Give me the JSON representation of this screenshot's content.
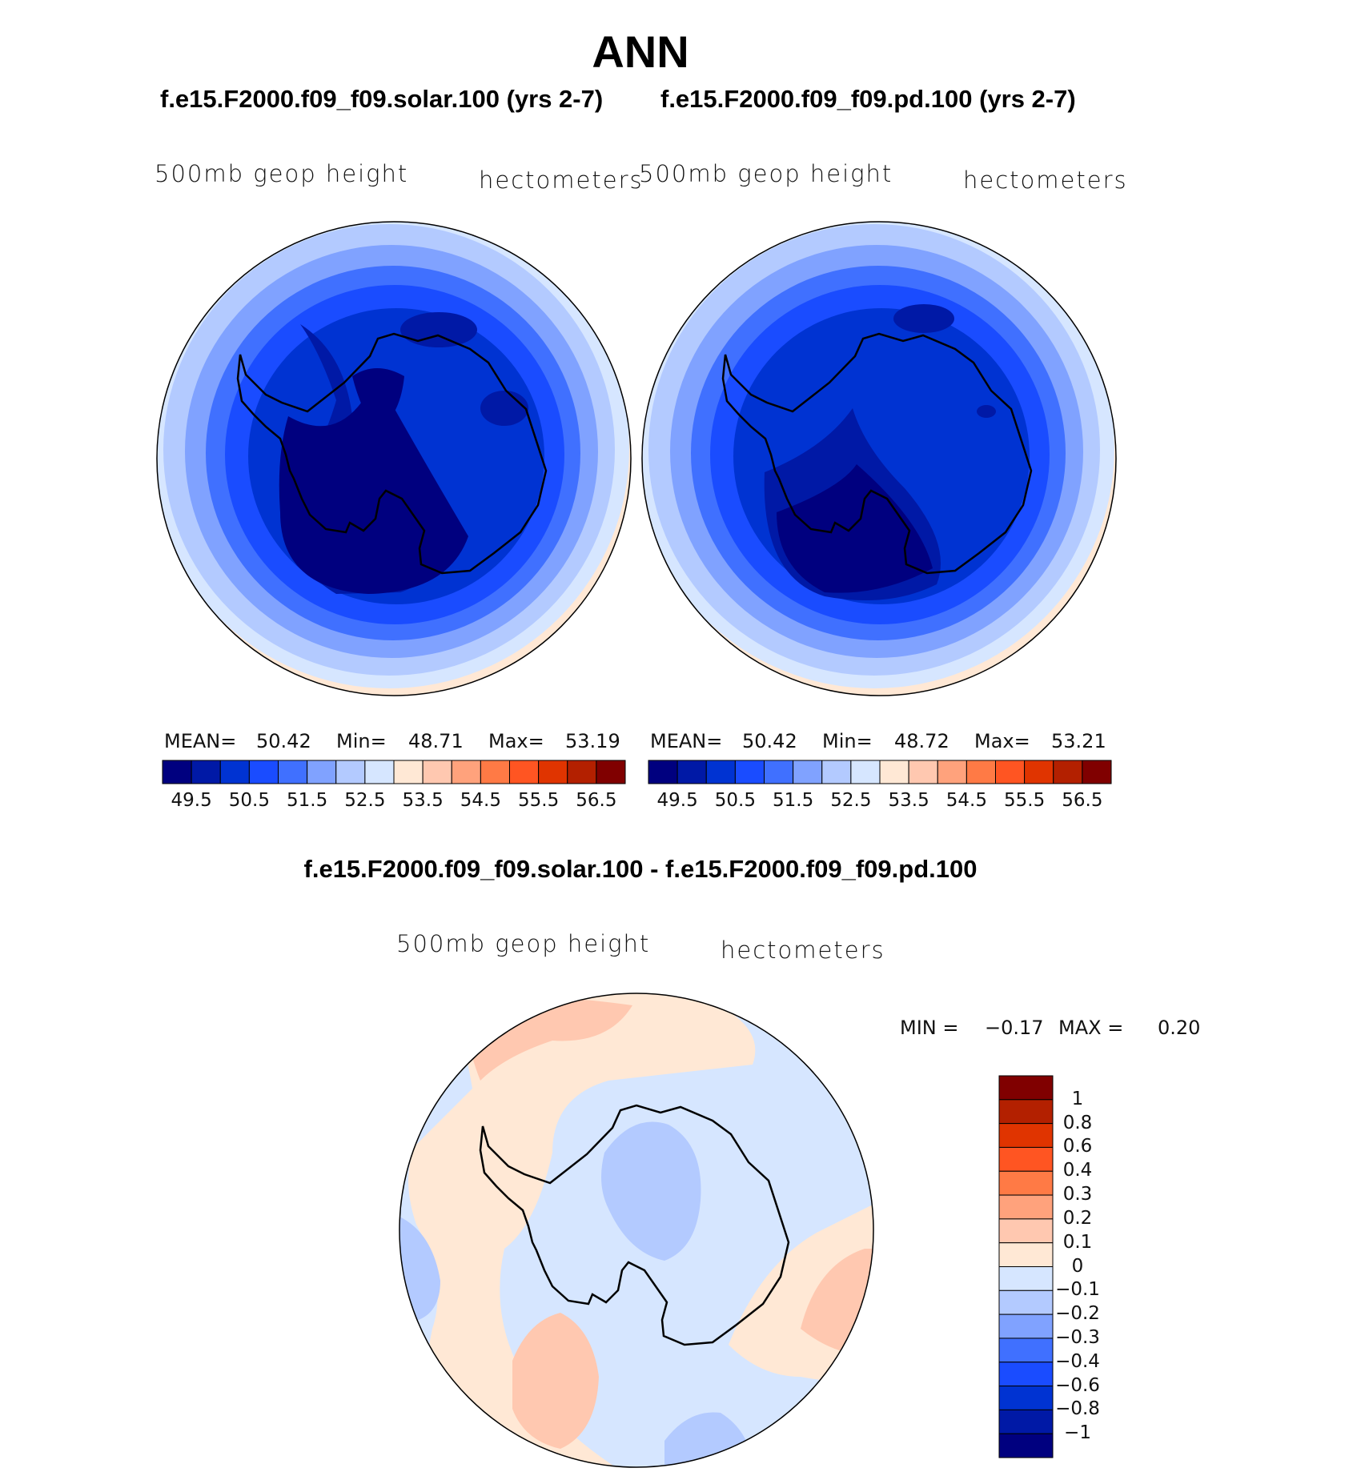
{
  "figure": {
    "title": "ANN",
    "case1_title": "f.e15.F2000.f09_f09.solar.100 (yrs 2-7)",
    "case2_title": "f.e15.F2000.f09_f09.pd.100 (yrs 2-7)",
    "diff_title": "f.e15.F2000.f09_f09.solar.100 - f.e15.F2000.f09_f09.pd.100"
  },
  "panels": [
    {
      "variable": "500mb geop height",
      "units": "hectometers",
      "mean_label": "MEAN=",
      "mean": "50.42",
      "min_label": "Min=",
      "min": "48.71",
      "max_label": "Max=",
      "max": "53.19"
    },
    {
      "variable": "500mb geop height",
      "units": "hectometers",
      "mean_label": "MEAN=",
      "mean": "50.42",
      "min_label": "Min=",
      "min": "48.72",
      "max_label": "Max=",
      "max": "53.21"
    },
    {
      "variable": "500mb geop height",
      "units": "hectometers",
      "min_label": "MIN =",
      "min": "−0.17",
      "max_label": "MAX =",
      "max": "0.20"
    }
  ],
  "chart_data": [
    {
      "type": "heatmap",
      "projection": "south polar stereographic",
      "region": "Antarctica",
      "title": "f.e15.F2000.f09_f09.solar.100 (yrs 2-7)",
      "variable": "500mb geop height",
      "units": "hectometers",
      "mean": 50.42,
      "min": 48.71,
      "max": 53.19,
      "levels": [
        49,
        49.5,
        50,
        50.5,
        51,
        51.5,
        52,
        52.5,
        53,
        53.5,
        54,
        54.5,
        55,
        55.5,
        56,
        56.5
      ],
      "colorbar_tick_labels": [
        "49.5",
        "50.5",
        "51.5",
        "52.5",
        "53.5",
        "54.5",
        "55.5",
        "56.5"
      ],
      "colors": [
        "#00007f",
        "#0019a6",
        "#0033d2",
        "#1a4cff",
        "#4070ff",
        "#80a2ff",
        "#b3caff",
        "#d6e6ff",
        "#ffe8d5",
        "#ffc8b0",
        "#ffa27c",
        "#ff7a45",
        "#ff5522",
        "#e03400",
        "#b32000",
        "#800000"
      ]
    },
    {
      "type": "heatmap",
      "projection": "south polar stereographic",
      "region": "Antarctica",
      "title": "f.e15.F2000.f09_f09.pd.100 (yrs 2-7)",
      "variable": "500mb geop height",
      "units": "hectometers",
      "mean": 50.42,
      "min": 48.72,
      "max": 53.21,
      "levels": [
        49,
        49.5,
        50,
        50.5,
        51,
        51.5,
        52,
        52.5,
        53,
        53.5,
        54,
        54.5,
        55,
        55.5,
        56,
        56.5
      ],
      "colorbar_tick_labels": [
        "49.5",
        "50.5",
        "51.5",
        "52.5",
        "53.5",
        "54.5",
        "55.5",
        "56.5"
      ],
      "colors": [
        "#00007f",
        "#0019a6",
        "#0033d2",
        "#1a4cff",
        "#4070ff",
        "#80a2ff",
        "#b3caff",
        "#d6e6ff",
        "#ffe8d5",
        "#ffc8b0",
        "#ffa27c",
        "#ff7a45",
        "#ff5522",
        "#e03400",
        "#b32000",
        "#800000"
      ]
    },
    {
      "type": "heatmap",
      "projection": "south polar stereographic",
      "region": "Antarctica",
      "title": "f.e15.F2000.f09_f09.solar.100 - f.e15.F2000.f09_f09.pd.100",
      "variable": "500mb geop height",
      "units": "hectometers",
      "min": -0.17,
      "max": 0.2,
      "levels": [
        -1,
        -0.8,
        -0.6,
        -0.4,
        -0.3,
        -0.2,
        -0.1,
        0,
        0.1,
        0.2,
        0.3,
        0.4,
        0.6,
        0.8,
        1
      ],
      "colorbar_tick_labels": [
        "1",
        "0.8",
        "0.6",
        "0.4",
        "0.3",
        "0.2",
        "0.1",
        "0",
        "−0.1",
        "−0.2",
        "−0.3",
        "−0.4",
        "−0.6",
        "−0.8",
        "−1"
      ],
      "colors_top_to_bottom": [
        "#800000",
        "#b32000",
        "#e03400",
        "#ff5522",
        "#ff7a45",
        "#ffa27c",
        "#ffc8b0",
        "#ffe8d5",
        "#d6e6ff",
        "#b3caff",
        "#80a2ff",
        "#4070ff",
        "#1a4cff",
        "#0033d2",
        "#0019a6",
        "#00007f"
      ]
    }
  ]
}
